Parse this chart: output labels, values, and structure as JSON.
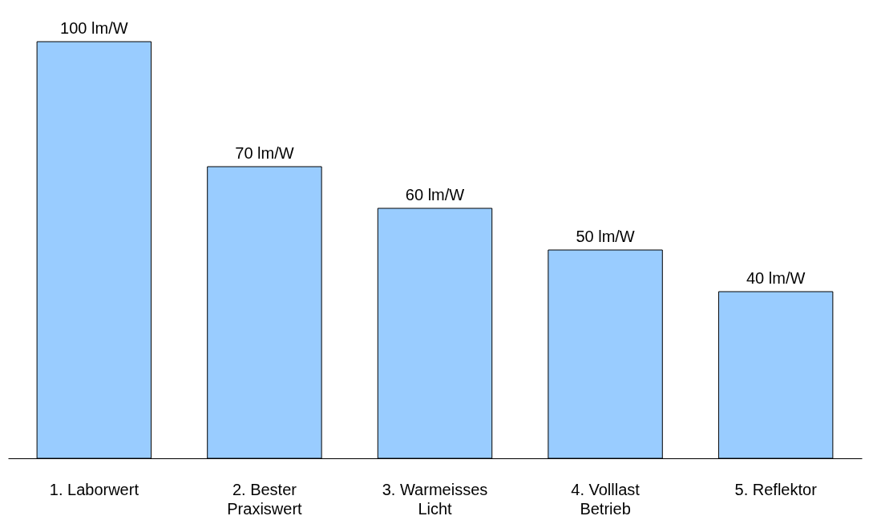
{
  "chart_data": {
    "type": "bar",
    "categories": [
      "1. Laborwert",
      "2. Bester\nPraxiswert",
      "3. Warmeisses\nLicht",
      "4. Volllast\nBetrieb",
      "5. Reflektor"
    ],
    "values": [
      100,
      70,
      60,
      50,
      40
    ],
    "value_labels": [
      "100 lm/W",
      "70 lm/W",
      "60 lm/W",
      "50 lm/W",
      "40 lm/W"
    ],
    "color": "#99ccff",
    "ylim": [
      0,
      100
    ]
  }
}
